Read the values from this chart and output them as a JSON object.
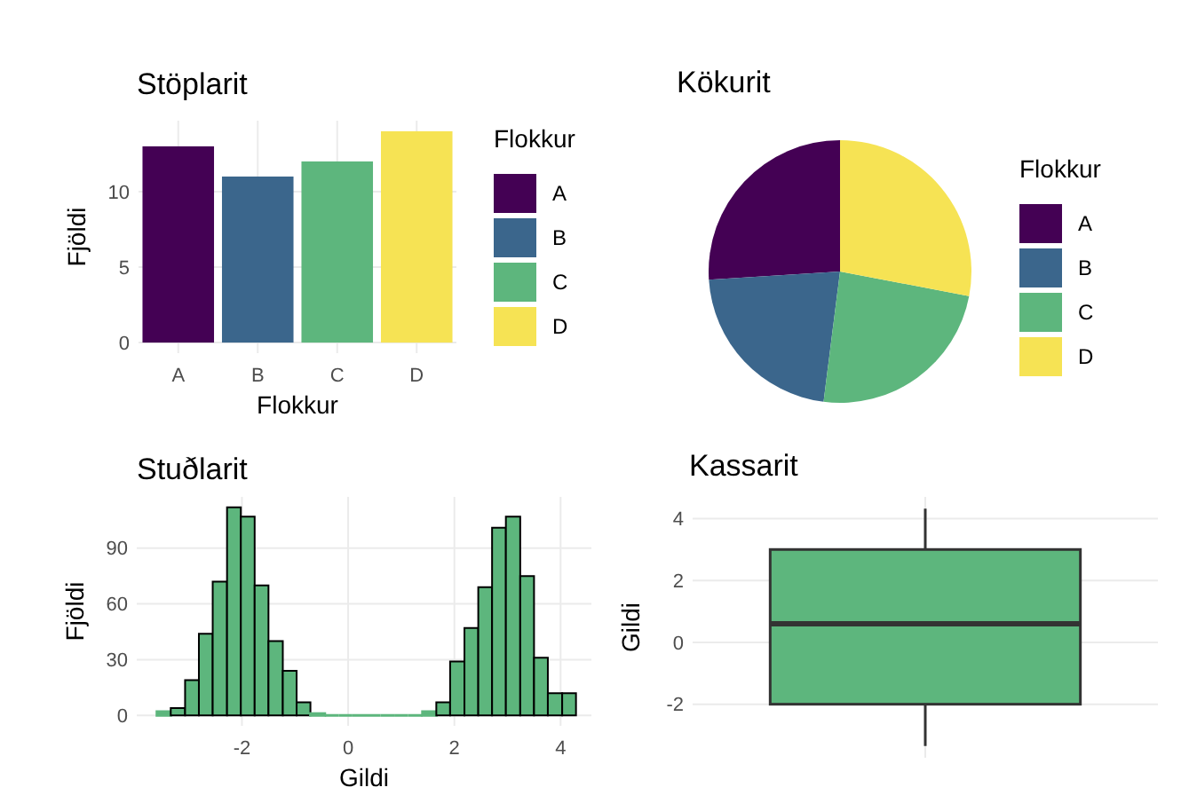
{
  "chart_data": [
    {
      "type": "bar",
      "title": "Stöplarit",
      "xlabel": "Flokkur",
      "ylabel": "Fjöldi",
      "legend_title": "Flokkur",
      "categories": [
        "A",
        "B",
        "C",
        "D"
      ],
      "stacked": true,
      "series": [
        {
          "name": "A",
          "color": "#440154",
          "values": [
            13,
            null,
            null,
            null
          ]
        },
        {
          "name": "B",
          "color": "#3b668c",
          "values": [
            null,
            11,
            null,
            null
          ]
        },
        {
          "name": "C",
          "color": "#5db67d",
          "values": [
            null,
            null,
            12,
            null
          ]
        },
        {
          "name": "D",
          "color": "#f6e354",
          "values": [
            null,
            null,
            null,
            14
          ]
        }
      ],
      "ylim": [
        -0.7,
        14.7
      ],
      "yticks": [
        0,
        5,
        10
      ],
      "grid": true,
      "legend": "right"
    },
    {
      "type": "pie",
      "title": "Kökurit",
      "legend_title": "Flokkur",
      "categories": [
        "A",
        "B",
        "C",
        "D"
      ],
      "values": [
        26,
        22,
        24,
        28
      ],
      "colors": [
        "#440154",
        "#3b668c",
        "#5db67d",
        "#f6e354"
      ],
      "legend": "right"
    },
    {
      "type": "histogram",
      "title": "Stuðlarit",
      "xlabel": "Gildi",
      "ylabel": "Fjöldi",
      "color": "#5db67d",
      "bins": [
        -3.6,
        -3.34,
        -3.07,
        -2.81,
        -2.55,
        -2.28,
        -2.02,
        -1.76,
        -1.5,
        -1.23,
        -0.97,
        -0.71,
        -0.44,
        -0.18,
        0.08,
        0.35,
        0.61,
        0.87,
        1.13,
        1.4,
        1.66,
        1.92,
        2.19,
        2.45,
        2.71,
        2.97,
        3.24,
        3.5,
        3.76,
        4.03,
        4.29
      ],
      "values": [
        2,
        4,
        19,
        44,
        72,
        112,
        107,
        70,
        40,
        24,
        7,
        1,
        0,
        0,
        0,
        0,
        0,
        0,
        0,
        2,
        7,
        29,
        47,
        69,
        101,
        107,
        75,
        31,
        12,
        12
      ],
      "xlim": [
        -3.98,
        4.58
      ],
      "xticks": [
        -2,
        0,
        2,
        4
      ],
      "ylim": [
        -5.6,
        117.6
      ],
      "yticks": [
        0,
        30,
        60,
        90
      ],
      "grid": true
    },
    {
      "type": "box",
      "title": "Kassarit",
      "ylabel": "Gildi",
      "categories": [
        null
      ],
      "color": "#5db67d",
      "boxes": [
        {
          "low": -3.35,
          "q1": -2,
          "median": 0.6,
          "q3": 3,
          "high": 4.32
        }
      ],
      "ylim": [
        -3.73,
        4.7
      ],
      "yticks": [
        -2,
        0,
        2,
        4
      ],
      "grid": true,
      "tick_labels": "y"
    }
  ]
}
